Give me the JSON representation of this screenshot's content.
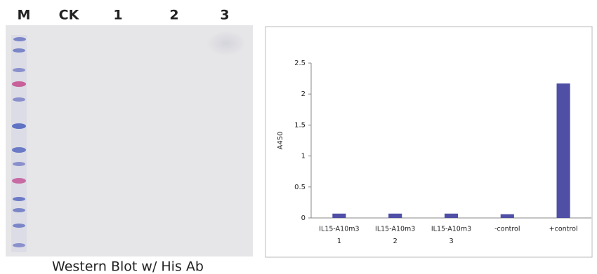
{
  "blot": {
    "lanes": [
      "M",
      "CK",
      "1",
      "2",
      "3"
    ],
    "caption": "Western Blot w/ His Ab"
  },
  "chart_data": {
    "type": "bar",
    "ylabel": "A450",
    "categories": [
      [
        "IL15-A10m3",
        "1"
      ],
      [
        "IL15-A10m3",
        "2"
      ],
      [
        "IL15-A10m3",
        "3"
      ],
      [
        "-control"
      ],
      [
        "+control"
      ]
    ],
    "values": [
      0.07,
      0.07,
      0.07,
      0.06,
      2.17
    ],
    "color": "#4f4fa6",
    "ylim": [
      0,
      2.5
    ],
    "yticks": [
      0,
      0.5,
      1,
      1.5,
      2,
      2.5
    ],
    "grid": false
  }
}
